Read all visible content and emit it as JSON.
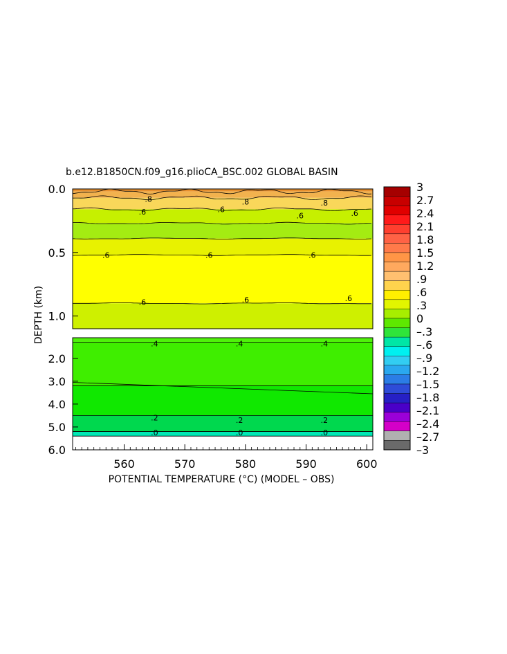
{
  "chart_data": {
    "type": "heatmap",
    "title": "b.e12.B1850CN.f09_g16.plioCA_BSC.002 GLOBAL BASIN",
    "xlabel": "POTENTIAL TEMPERATURE (°C) (MODEL – OBS)",
    "ylabel": "DEPTH (km)",
    "x_ticks": [
      "560",
      "570",
      "580",
      "590",
      "600"
    ],
    "xlim": [
      551.5,
      601
    ],
    "upper_panel": {
      "ylim": [
        0.0,
        1.1
      ],
      "y_ticks": [
        "0.0",
        "0.5",
        "1.0"
      ],
      "bands": [
        {
          "from": 0.0,
          "to": 0.02,
          "color": "#e8902e"
        },
        {
          "from": 0.02,
          "to": 0.07,
          "color": "#f2b24e"
        },
        {
          "from": 0.07,
          "to": 0.16,
          "color": "#f9d75a"
        },
        {
          "from": 0.16,
          "to": 0.27,
          "color": "#c6f000"
        },
        {
          "from": 0.27,
          "to": 0.39,
          "color": "#a4ec12"
        },
        {
          "from": 0.39,
          "to": 0.52,
          "color": "#e8f200"
        },
        {
          "from": 0.52,
          "to": 0.9,
          "color": "#ffff00"
        },
        {
          "from": 0.9,
          "to": 1.1,
          "color": "#cef000"
        }
      ],
      "contour_labels": [
        {
          "x": 564,
          "depth": 0.08,
          "text": ".8"
        },
        {
          "x": 580,
          "depth": 0.1,
          "text": ".8"
        },
        {
          "x": 593,
          "depth": 0.11,
          "text": ".8"
        },
        {
          "x": 563,
          "depth": 0.18,
          "text": ".6"
        },
        {
          "x": 576,
          "depth": 0.16,
          "text": ".6"
        },
        {
          "x": 589,
          "depth": 0.21,
          "text": ".6"
        },
        {
          "x": 598,
          "depth": 0.19,
          "text": ".6"
        },
        {
          "x": 557,
          "depth": 0.52,
          "text": ".6"
        },
        {
          "x": 574,
          "depth": 0.52,
          "text": ".6"
        },
        {
          "x": 591,
          "depth": 0.52,
          "text": ".6"
        },
        {
          "x": 563,
          "depth": 0.89,
          "text": ".6"
        },
        {
          "x": 580,
          "depth": 0.87,
          "text": ".6"
        },
        {
          "x": 597,
          "depth": 0.86,
          "text": ".6"
        }
      ]
    },
    "lower_panel": {
      "ylim": [
        1.1,
        6.0
      ],
      "y_ticks": [
        "2.0",
        "3.0",
        "4.0",
        "5.0",
        "6.0"
      ],
      "bands": [
        {
          "from": 1.1,
          "to": 1.3,
          "color": "#4ff20a"
        },
        {
          "from": 1.3,
          "to": 3.2,
          "color": "#3fee00"
        },
        {
          "from": 3.2,
          "to": 4.5,
          "color": "#10e800"
        },
        {
          "from": 4.5,
          "to": 5.2,
          "color": "#00d84e"
        },
        {
          "from": 5.2,
          "to": 5.4,
          "color": "#00e8b4"
        },
        {
          "from": 5.4,
          "to": 6.0,
          "color": "#ffffff"
        }
      ],
      "contour_labels": [
        {
          "x": 565,
          "depth": 1.35,
          "text": ".4"
        },
        {
          "x": 579,
          "depth": 1.35,
          "text": ".4"
        },
        {
          "x": 593,
          "depth": 1.35,
          "text": ".4"
        },
        {
          "x": 565,
          "depth": 4.6,
          "text": ".2"
        },
        {
          "x": 579,
          "depth": 4.7,
          "text": ".2"
        },
        {
          "x": 593,
          "depth": 4.7,
          "text": ".2"
        },
        {
          "x": 565,
          "depth": 5.25,
          "text": ".0"
        },
        {
          "x": 579,
          "depth": 5.25,
          "text": ".0"
        },
        {
          "x": 593,
          "depth": 5.25,
          "text": ".0"
        }
      ]
    },
    "colorbar": {
      "labels": [
        "3",
        "2.7",
        "2.4",
        "2.1",
        "1.8",
        "1.5",
        "1.2",
        ".9",
        ".6",
        ".3",
        "0",
        "–.3",
        "–.6",
        "–.9",
        "–1.2",
        "–1.5",
        "–1.8",
        "–2.1",
        "–2.4",
        "–2.7",
        "–3"
      ],
      "segments": [
        "#a50000",
        "#c80000",
        "#e00000",
        "#ff1a1a",
        "#ff3f2f",
        "#ff6245",
        "#ff7a4a",
        "#ff9546",
        "#ffa95e",
        "#ffc070",
        "#ffd34d",
        "#ffef00",
        "#e2f500",
        "#a7ee00",
        "#5ee800",
        "#2fe43a",
        "#00e6a6",
        "#00f0f0",
        "#32cdf2",
        "#2aa8ef",
        "#2b7de6",
        "#2e4cd8",
        "#2620c5",
        "#4a00c8",
        "#9b00d8",
        "#d400c8",
        "#b0b0b0",
        "#6a6a6a"
      ]
    }
  }
}
